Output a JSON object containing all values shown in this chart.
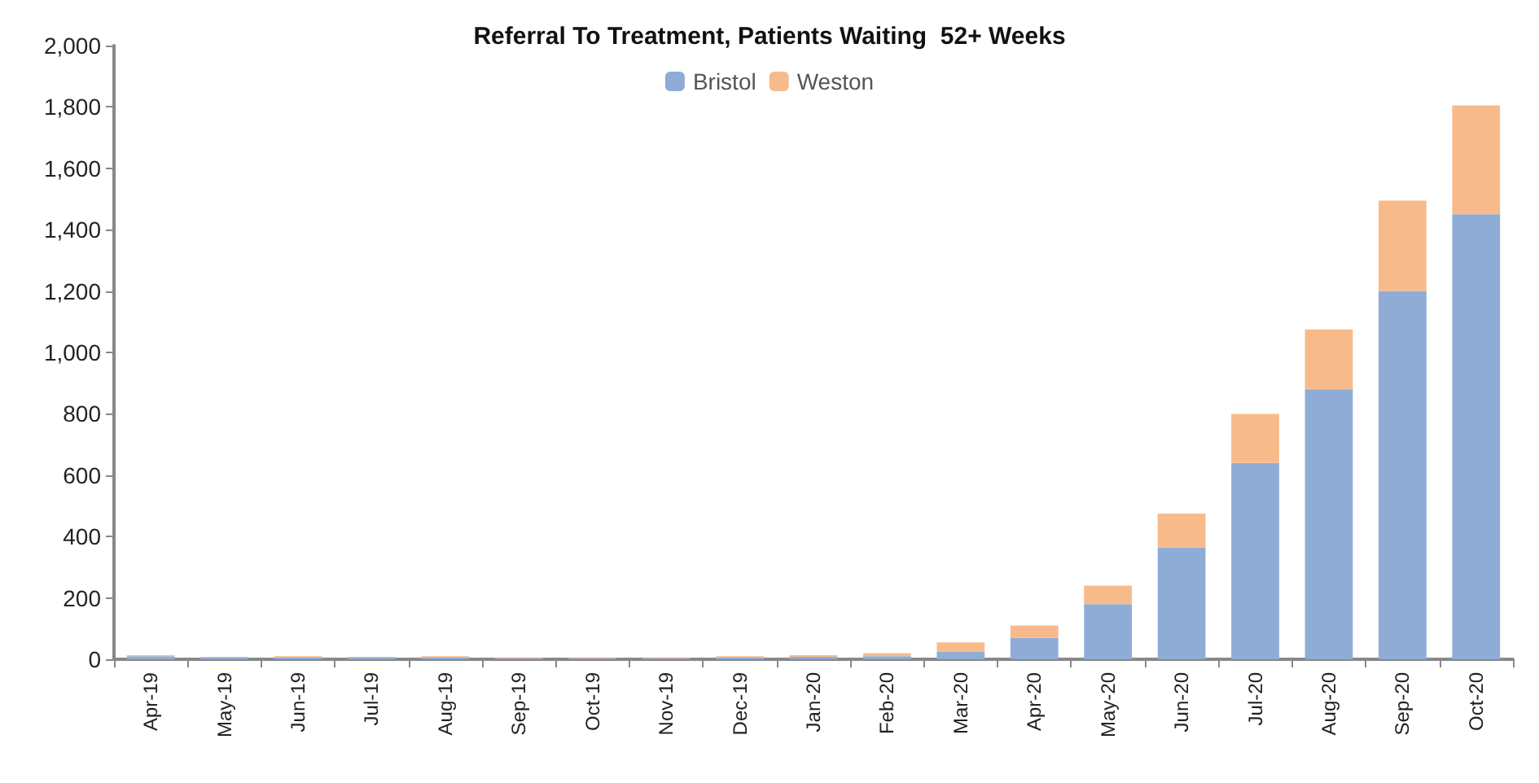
{
  "chart_data": {
    "type": "bar",
    "title": "Referral To Treatment, Patients Waiting  52+ Weeks",
    "stacked": true,
    "legend": "top",
    "categories": [
      "Apr-19",
      "May-19",
      "Jun-19",
      "Jul-19",
      "Aug-19",
      "Sep-19",
      "Oct-19",
      "Nov-19",
      "Dec-19",
      "Jan-20",
      "Feb-20",
      "Mar-20",
      "Apr-20",
      "May-20",
      "Jun-20",
      "Jul-20",
      "Aug-20",
      "Sep-20",
      "Oct-20"
    ],
    "series": [
      {
        "name": "Bristol",
        "color": "#8eacd6",
        "values": [
          10,
          5,
          5,
          5,
          5,
          2,
          2,
          2,
          5,
          8,
          10,
          25,
          70,
          180,
          365,
          640,
          880,
          1200,
          1450
        ]
      },
      {
        "name": "Weston",
        "color": "#f7bb8b",
        "values": [
          3,
          3,
          5,
          3,
          5,
          2,
          2,
          2,
          5,
          5,
          10,
          30,
          40,
          60,
          110,
          160,
          195,
          295,
          355
        ]
      }
    ],
    "ylim": [
      0,
      2000
    ],
    "yticks": [
      {
        "value": 0,
        "label": "0"
      },
      {
        "value": 200,
        "label": "200"
      },
      {
        "value": 400,
        "label": "400"
      },
      {
        "value": 600,
        "label": "600"
      },
      {
        "value": 800,
        "label": "800"
      },
      {
        "value": 1000,
        "label": "1,000"
      },
      {
        "value": 1200,
        "label": "1,200"
      },
      {
        "value": 1400,
        "label": "1,400"
      },
      {
        "value": 1600,
        "label": "1,600"
      },
      {
        "value": 1800,
        "label": "1,800"
      },
      {
        "value": 2000,
        "label": "2,000"
      }
    ],
    "grid": false
  }
}
